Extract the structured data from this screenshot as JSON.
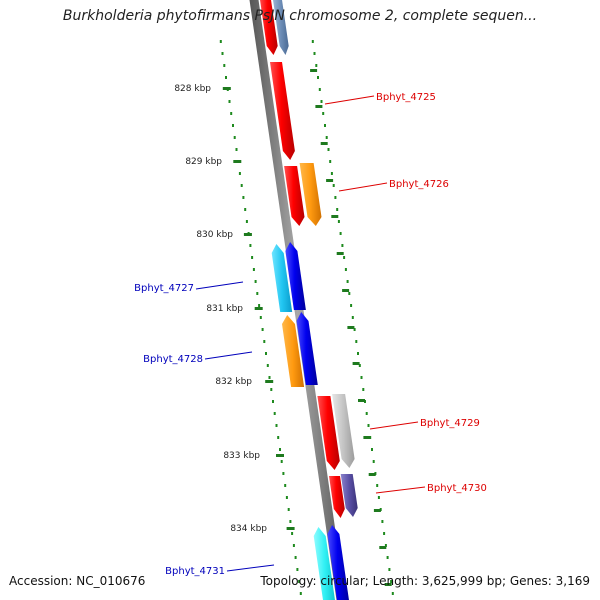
{
  "title": "Burkholderia phytofirmans PsJN chromosome 2, complete sequen...",
  "ticks": [
    "828 kbp",
    "829 kbp",
    "830 kbp",
    "831 kbp",
    "832 kbp",
    "833 kbp",
    "834 kbp"
  ],
  "genes": [
    {
      "label": "Bphyt_4725",
      "color": "#dd0000",
      "strand": "forward"
    },
    {
      "label": "Bphyt_4726",
      "color": "#dd0000",
      "strand": "forward"
    },
    {
      "label": "Bphyt_4727",
      "color": "#0000bb",
      "strand": "reverse"
    },
    {
      "label": "Bphyt_4728",
      "color": "#0000bb",
      "strand": "reverse"
    },
    {
      "label": "Bphyt_4729",
      "color": "#dd0000",
      "strand": "forward"
    },
    {
      "label": "Bphyt_4730",
      "color": "#dd0000",
      "strand": "forward"
    },
    {
      "label": "Bphyt_4731",
      "color": "#0000bb",
      "strand": "reverse"
    }
  ],
  "footer": {
    "accession": "Accession: NC_010676",
    "stats": "Topology: circular; Length: 3,625,999 bp; Genes: 3,169"
  }
}
